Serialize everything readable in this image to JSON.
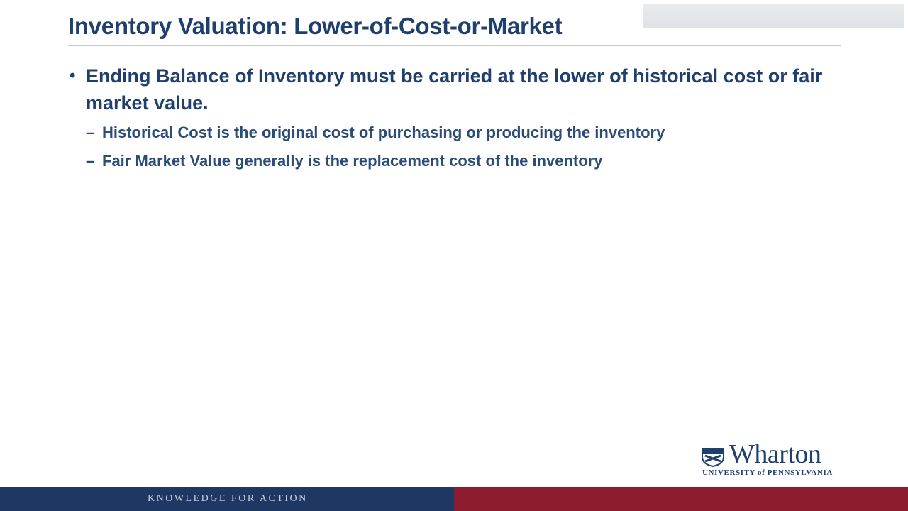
{
  "slide": {
    "title": "Inventory Valuation: Lower-of-Cost-or-Market",
    "bullets": [
      {
        "text": "Ending Balance of Inventory must be carried at the lower of historical cost or fair market value.",
        "sub_bullets": [
          "Historical Cost is the original cost of purchasing or producing the inventory",
          "Fair Market Value generally is the replacement cost of the inventory"
        ]
      }
    ]
  },
  "logo": {
    "wordmark": "Wharton",
    "university": "UNIVERSITY of PENNSYLVANIA",
    "icon": "penn-shield-icon"
  },
  "footer": {
    "tagline": "KNOWLEDGE FOR ACTION",
    "colors": {
      "left": "#1f3763",
      "right": "#8e1c30"
    }
  },
  "colors": {
    "title": "#1f3f6e",
    "accent": "#1f3f6e"
  }
}
